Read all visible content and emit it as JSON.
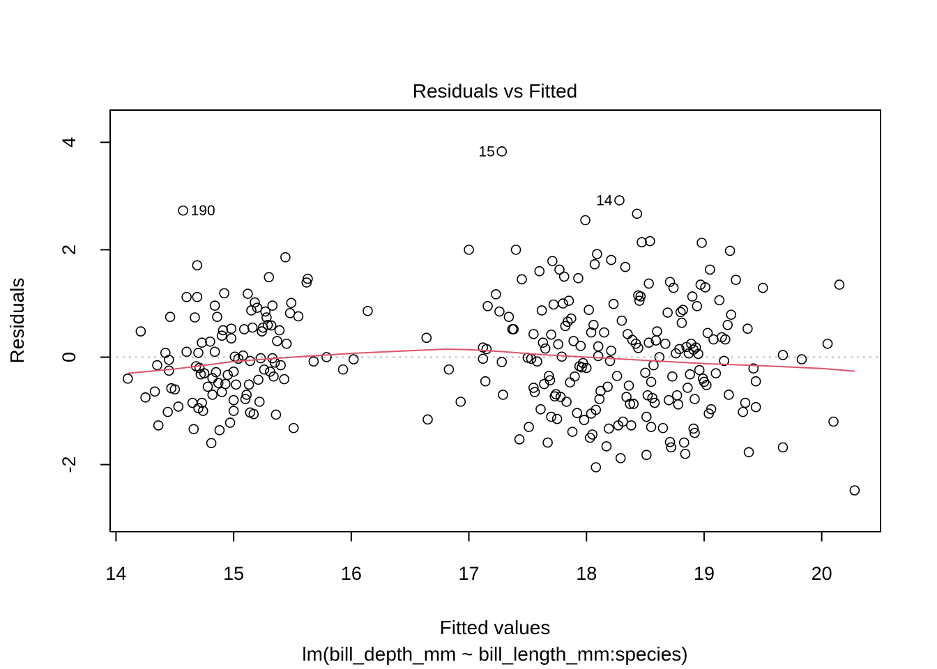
{
  "chart_data": {
    "type": "scatter",
    "title": "Residuals vs Fitted",
    "xlabel": "Fitted values",
    "subtitle": "lm(bill_depth_mm ~ bill_length_mm:species)",
    "ylabel": "Residuals",
    "xlim": [
      13.95,
      20.5
    ],
    "ylim": [
      -3.25,
      4.6
    ],
    "x_ticks": [
      14,
      15,
      16,
      17,
      18,
      19,
      20
    ],
    "y_ticks": [
      -2,
      0,
      2,
      4
    ],
    "x_tick_labels": [
      "14",
      "15",
      "16",
      "17",
      "18",
      "19",
      "20"
    ],
    "y_tick_labels": [
      "-2",
      "0",
      "2",
      "4"
    ],
    "grid": false,
    "reference_line": {
      "y": 0,
      "style": "dotted",
      "color": "#bebebe"
    },
    "smoother_color": "#DF536B",
    "labeled_points": [
      {
        "label": "190",
        "x": 14.57,
        "y": 2.73
      },
      {
        "label": "15",
        "x": 17.28,
        "y": 3.83
      },
      {
        "label": "14",
        "x": 18.28,
        "y": 2.92
      }
    ],
    "smoother": [
      [
        14.1,
        -0.3
      ],
      [
        14.5,
        -0.22
      ],
      [
        15.0,
        -0.08
      ],
      [
        15.5,
        0.0
      ],
      [
        16.0,
        0.07
      ],
      [
        16.5,
        0.12
      ],
      [
        16.8,
        0.15
      ],
      [
        17.0,
        0.14
      ],
      [
        17.3,
        0.1
      ],
      [
        17.6,
        0.05
      ],
      [
        18.0,
        0.0
      ],
      [
        18.5,
        -0.06
      ],
      [
        19.0,
        -0.12
      ],
      [
        19.5,
        -0.16
      ],
      [
        20.0,
        -0.21
      ],
      [
        20.28,
        -0.26
      ]
    ],
    "points": [
      [
        14.1,
        -0.4
      ],
      [
        14.21,
        0.48
      ],
      [
        14.25,
        -0.75
      ],
      [
        14.33,
        -0.64
      ],
      [
        14.35,
        -0.15
      ],
      [
        14.36,
        -1.27
      ],
      [
        14.42,
        0.08
      ],
      [
        14.44,
        -1.02
      ],
      [
        14.45,
        -0.05
      ],
      [
        14.46,
        0.75
      ],
      [
        14.47,
        -0.58
      ],
      [
        14.5,
        -0.6
      ],
      [
        14.53,
        -0.92
      ],
      [
        14.45,
        -0.25
      ],
      [
        14.6,
        1.12
      ],
      [
        14.6,
        0.1
      ],
      [
        14.65,
        -0.85
      ],
      [
        14.66,
        -1.34
      ],
      [
        14.67,
        0.74
      ],
      [
        14.68,
        -0.17
      ],
      [
        14.69,
        1.12
      ],
      [
        14.69,
        1.71
      ],
      [
        14.7,
        0.08
      ],
      [
        14.7,
        -0.95
      ],
      [
        14.71,
        -0.2
      ],
      [
        14.72,
        -0.32
      ],
      [
        14.73,
        -0.85
      ],
      [
        14.73,
        0.27
      ],
      [
        14.74,
        -1.0
      ],
      [
        14.75,
        -0.3
      ],
      [
        14.78,
        -0.55
      ],
      [
        14.8,
        0.29
      ],
      [
        14.81,
        -1.6
      ],
      [
        14.82,
        -0.7
      ],
      [
        14.82,
        -0.39
      ],
      [
        14.84,
        0.1
      ],
      [
        14.84,
        0.96
      ],
      [
        14.85,
        -0.28
      ],
      [
        14.86,
        0.75
      ],
      [
        14.87,
        -0.48
      ],
      [
        14.88,
        -1.36
      ],
      [
        14.9,
        0.4
      ],
      [
        14.9,
        -0.65
      ],
      [
        14.91,
        0.5
      ],
      [
        14.92,
        1.19
      ],
      [
        14.93,
        -0.5
      ],
      [
        14.95,
        -0.33
      ],
      [
        14.97,
        -1.22
      ],
      [
        14.98,
        0.53
      ],
      [
        14.98,
        0.35
      ],
      [
        15.0,
        -0.27
      ],
      [
        15.0,
        -1.0
      ],
      [
        15.0,
        -0.8
      ],
      [
        15.01,
        0.01
      ],
      [
        15.02,
        -0.51
      ],
      [
        15.04,
        -0.03
      ],
      [
        15.08,
        0.03
      ],
      [
        15.09,
        0.52
      ],
      [
        15.1,
        -0.78
      ],
      [
        15.11,
        -0.7
      ],
      [
        15.12,
        1.18
      ],
      [
        15.13,
        -0.51
      ],
      [
        15.14,
        -1.03
      ],
      [
        15.14,
        -0.07
      ],
      [
        15.15,
        0.87
      ],
      [
        15.16,
        0.55
      ],
      [
        15.17,
        -1.06
      ],
      [
        15.18,
        1.02
      ],
      [
        15.2,
        0.92
      ],
      [
        15.21,
        -0.42
      ],
      [
        15.22,
        -0.83
      ],
      [
        15.23,
        -0.02
      ],
      [
        15.24,
        0.48
      ],
      [
        15.25,
        0.55
      ],
      [
        15.26,
        -0.23
      ],
      [
        15.27,
        0.85
      ],
      [
        15.28,
        0.74
      ],
      [
        15.29,
        0.6
      ],
      [
        15.3,
        1.49
      ],
      [
        15.31,
        -0.27
      ],
      [
        15.32,
        0.59
      ],
      [
        15.33,
        -0.02
      ],
      [
        15.33,
        0.96
      ],
      [
        15.34,
        -0.36
      ],
      [
        15.35,
        -0.1
      ],
      [
        15.36,
        -1.07
      ],
      [
        15.37,
        0.3
      ],
      [
        15.39,
        0.5
      ],
      [
        15.4,
        -0.15
      ],
      [
        15.43,
        -0.41
      ],
      [
        15.44,
        1.86
      ],
      [
        15.45,
        0.25
      ],
      [
        15.48,
        0.82
      ],
      [
        15.49,
        1.01
      ],
      [
        15.51,
        -1.32
      ],
      [
        15.55,
        0.76
      ],
      [
        15.62,
        1.39
      ],
      [
        15.63,
        1.46
      ],
      [
        15.68,
        -0.08
      ],
      [
        15.79,
        0.0
      ],
      [
        15.93,
        -0.23
      ],
      [
        16.02,
        -0.04
      ],
      [
        16.14,
        0.86
      ],
      [
        16.64,
        0.36
      ],
      [
        16.65,
        -1.16
      ],
      [
        16.83,
        -0.23
      ],
      [
        16.93,
        -0.83
      ],
      [
        17.0,
        2.0
      ],
      [
        17.12,
        -0.03
      ],
      [
        17.12,
        0.18
      ],
      [
        17.14,
        -0.45
      ],
      [
        17.15,
        0.15
      ],
      [
        17.16,
        0.95
      ],
      [
        17.23,
        1.17
      ],
      [
        17.26,
        0.85
      ],
      [
        17.28,
        -0.09
      ],
      [
        17.29,
        -0.7
      ],
      [
        17.34,
        0.75
      ],
      [
        17.37,
        0.52
      ],
      [
        17.38,
        0.52
      ],
      [
        17.4,
        2.0
      ],
      [
        17.43,
        -1.53
      ],
      [
        17.45,
        1.45
      ],
      [
        17.5,
        -0.01
      ],
      [
        17.51,
        -1.3
      ],
      [
        17.53,
        -0.03
      ],
      [
        17.55,
        0.43
      ],
      [
        17.55,
        -0.57
      ],
      [
        17.56,
        -0.65
      ],
      [
        17.58,
        -0.08
      ],
      [
        17.6,
        1.6
      ],
      [
        17.61,
        -0.97
      ],
      [
        17.62,
        0.87
      ],
      [
        17.63,
        0.27
      ],
      [
        17.64,
        -0.5
      ],
      [
        17.65,
        0.16
      ],
      [
        17.67,
        -1.59
      ],
      [
        17.68,
        -0.35
      ],
      [
        17.69,
        -0.43
      ],
      [
        17.7,
        0.42
      ],
      [
        17.7,
        -1.11
      ],
      [
        17.71,
        1.79
      ],
      [
        17.72,
        0.98
      ],
      [
        17.73,
        -0.73
      ],
      [
        17.74,
        -0.69
      ],
      [
        17.75,
        -1.15
      ],
      [
        17.76,
        0.24
      ],
      [
        17.77,
        1.63
      ],
      [
        17.78,
        -0.74
      ],
      [
        17.79,
        0.01
      ],
      [
        17.8,
        1.0
      ],
      [
        17.81,
        1.5
      ],
      [
        17.82,
        0.58
      ],
      [
        17.83,
        -0.83
      ],
      [
        17.84,
        0.66
      ],
      [
        17.85,
        1.05
      ],
      [
        17.86,
        -0.47
      ],
      [
        17.87,
        0.72
      ],
      [
        17.88,
        -1.39
      ],
      [
        17.89,
        0.3
      ],
      [
        17.9,
        -0.36
      ],
      [
        17.92,
        -1.04
      ],
      [
        17.93,
        1.47
      ],
      [
        17.94,
        -0.17
      ],
      [
        17.95,
        0.21
      ],
      [
        17.96,
        -0.19
      ],
      [
        17.97,
        -0.11
      ],
      [
        17.98,
        -1.17
      ],
      [
        17.99,
        2.55
      ],
      [
        18.0,
        -0.2
      ],
      [
        18.02,
        0.88
      ],
      [
        18.03,
        -1.5
      ],
      [
        18.04,
        -1.05
      ],
      [
        18.04,
        0.46
      ],
      [
        18.05,
        -1.44
      ],
      [
        18.06,
        0.6
      ],
      [
        18.07,
        1.73
      ],
      [
        18.08,
        -0.98
      ],
      [
        18.08,
        -2.05
      ],
      [
        18.09,
        1.92
      ],
      [
        18.1,
        0.2
      ],
      [
        18.1,
        0.02
      ],
      [
        18.11,
        -0.78
      ],
      [
        18.12,
        -0.63
      ],
      [
        18.15,
        0.46
      ],
      [
        18.17,
        -1.66
      ],
      [
        18.18,
        -0.55
      ],
      [
        18.19,
        -1.33
      ],
      [
        18.2,
        -0.07
      ],
      [
        18.21,
        1.81
      ],
      [
        18.21,
        0.12
      ],
      [
        18.23,
        0.99
      ],
      [
        18.26,
        -0.35
      ],
      [
        18.27,
        -1.27
      ],
      [
        18.29,
        -1.88
      ],
      [
        18.3,
        0.68
      ],
      [
        18.31,
        -1.2
      ],
      [
        18.33,
        1.68
      ],
      [
        18.34,
        -0.74
      ],
      [
        18.35,
        0.43
      ],
      [
        18.36,
        -0.53
      ],
      [
        18.37,
        -0.87
      ],
      [
        18.38,
        -1.27
      ],
      [
        18.39,
        0.32
      ],
      [
        18.4,
        -0.87
      ],
      [
        18.42,
        0.25
      ],
      [
        18.43,
        2.67
      ],
      [
        18.44,
        1.15
      ],
      [
        18.44,
        0.17
      ],
      [
        18.45,
        1.05
      ],
      [
        18.46,
        1.13
      ],
      [
        18.47,
        2.14
      ],
      [
        18.5,
        -0.29
      ],
      [
        18.51,
        -1.11
      ],
      [
        18.51,
        -1.82
      ],
      [
        18.52,
        -0.71
      ],
      [
        18.53,
        1.37
      ],
      [
        18.53,
        0.27
      ],
      [
        18.54,
        2.16
      ],
      [
        18.55,
        -0.46
      ],
      [
        18.55,
        -1.3
      ],
      [
        18.56,
        -0.76
      ],
      [
        18.57,
        -0.15
      ],
      [
        18.58,
        -0.85
      ],
      [
        18.59,
        0.31
      ],
      [
        18.6,
        0.48
      ],
      [
        18.62,
        0.0
      ],
      [
        18.65,
        -1.32
      ],
      [
        18.67,
        0.25
      ],
      [
        18.69,
        0.83
      ],
      [
        18.7,
        -0.8
      ],
      [
        18.71,
        1.4
      ],
      [
        18.71,
        -1.58
      ],
      [
        18.72,
        -1.68
      ],
      [
        18.73,
        -0.36
      ],
      [
        18.74,
        1.29
      ],
      [
        18.76,
        0.07
      ],
      [
        18.77,
        -0.71
      ],
      [
        18.78,
        -0.88
      ],
      [
        18.79,
        0.15
      ],
      [
        18.8,
        0.84
      ],
      [
        18.81,
        0.64
      ],
      [
        18.82,
        0.88
      ],
      [
        18.83,
        -1.59
      ],
      [
        18.84,
        -1.8
      ],
      [
        18.85,
        0.19
      ],
      [
        18.86,
        -0.57
      ],
      [
        18.87,
        0.07
      ],
      [
        18.88,
        -0.32
      ],
      [
        18.89,
        0.25
      ],
      [
        18.9,
        1.13
      ],
      [
        18.91,
        0.14
      ],
      [
        18.91,
        -1.33
      ],
      [
        18.92,
        -0.78
      ],
      [
        18.92,
        -1.41
      ],
      [
        18.93,
        0.18
      ],
      [
        18.94,
        0.95
      ],
      [
        18.95,
        0.06
      ],
      [
        18.96,
        -0.24
      ],
      [
        18.97,
        1.35
      ],
      [
        18.98,
        2.13
      ],
      [
        18.99,
        -0.4
      ],
      [
        19.0,
        -0.46
      ],
      [
        19.01,
        1.3
      ],
      [
        19.02,
        -0.52
      ],
      [
        19.03,
        0.45
      ],
      [
        19.04,
        -1.05
      ],
      [
        19.05,
        1.63
      ],
      [
        19.06,
        -0.97
      ],
      [
        19.08,
        0.33
      ],
      [
        19.1,
        -0.3
      ],
      [
        19.13,
        1.06
      ],
      [
        19.15,
        0.37
      ],
      [
        19.17,
        -0.07
      ],
      [
        19.18,
        0.33
      ],
      [
        19.2,
        0.6
      ],
      [
        19.21,
        -0.7
      ],
      [
        19.22,
        1.98
      ],
      [
        19.23,
        0.79
      ],
      [
        19.27,
        1.44
      ],
      [
        19.33,
        -1.02
      ],
      [
        19.35,
        -0.85
      ],
      [
        19.37,
        0.53
      ],
      [
        19.38,
        -1.77
      ],
      [
        19.42,
        -0.21
      ],
      [
        19.44,
        -0.93
      ],
      [
        19.44,
        -0.45
      ],
      [
        19.5,
        1.29
      ],
      [
        19.67,
        0.04
      ],
      [
        19.67,
        -1.68
      ],
      [
        19.83,
        -0.04
      ],
      [
        20.05,
        0.25
      ],
      [
        20.1,
        -1.2
      ],
      [
        20.15,
        1.35
      ],
      [
        20.28,
        -2.48
      ]
    ]
  }
}
